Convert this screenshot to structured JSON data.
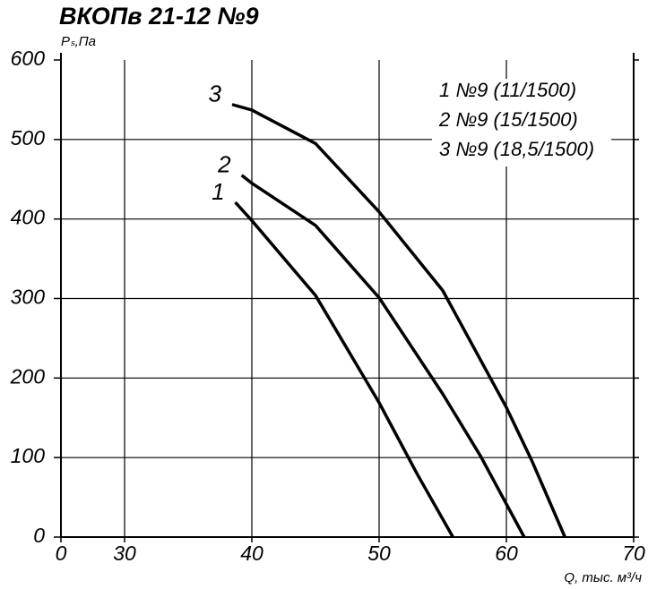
{
  "chart_data": {
    "type": "line",
    "title": "ВКОПв 21-12 №9",
    "y_label": "Pₛ,Па",
    "x_label": "Q, тыс. м³/ч",
    "xlim": [
      0,
      70
    ],
    "x_break": [
      0,
      30
    ],
    "xticks": [
      0,
      30,
      40,
      50,
      60,
      70
    ],
    "ylim": [
      0,
      600
    ],
    "yticks": [
      0,
      100,
      200,
      300,
      400,
      500,
      600
    ],
    "grid": true,
    "series": [
      {
        "name": "1 №9 (11/1500)",
        "label": "1",
        "color": "#000000",
        "x": [
          38.7,
          40,
          45,
          50,
          53,
          55.8
        ],
        "values": [
          421,
          398,
          304,
          169,
          79,
          0
        ]
      },
      {
        "name": "2 №9 (15/1500)",
        "label": "2",
        "color": "#000000",
        "x": [
          39.2,
          40,
          45,
          50,
          55,
          58,
          61.4
        ],
        "values": [
          455,
          445,
          392,
          301,
          180,
          101,
          0
        ]
      },
      {
        "name": "3 №9 (18,5/1500)",
        "label": "3",
        "color": "#000000",
        "x": [
          38.45,
          40,
          45,
          50,
          55,
          60,
          62,
          64.6
        ],
        "values": [
          544,
          537,
          495,
          409,
          310,
          163,
          96,
          0
        ]
      }
    ]
  }
}
